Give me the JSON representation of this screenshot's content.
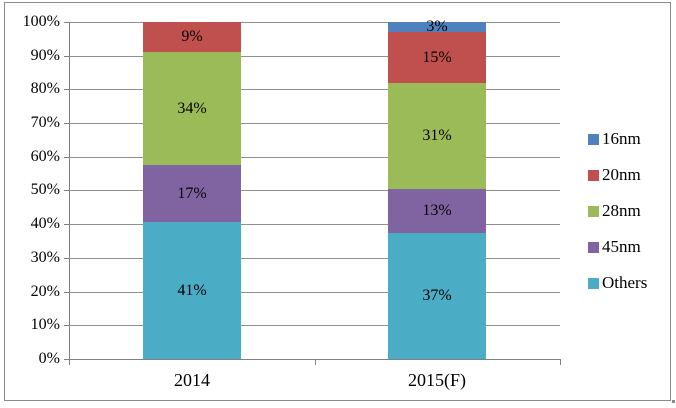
{
  "chart_data": {
    "type": "bar",
    "subtype": "stacked-100",
    "title": "",
    "xlabel": "",
    "ylabel": "",
    "categories": [
      "2014",
      "2015(F)"
    ],
    "series": [
      {
        "name": "16nm",
        "color": "#4F81BD",
        "values": [
          0,
          3
        ],
        "labels": [
          "",
          "3%"
        ]
      },
      {
        "name": "20nm",
        "color": "#C0504D",
        "values": [
          9,
          15
        ],
        "labels": [
          "9%",
          "15%"
        ]
      },
      {
        "name": "28nm",
        "color": "#9BBB59",
        "values": [
          34,
          31
        ],
        "labels": [
          "34%",
          "31%"
        ]
      },
      {
        "name": "45nm",
        "color": "#8064A2",
        "values": [
          17,
          13
        ],
        "labels": [
          "17%",
          "13%"
        ]
      },
      {
        "name": "Others",
        "color": "#4BACC6",
        "values": [
          41,
          37
        ],
        "labels": [
          "41%",
          "37%"
        ]
      }
    ],
    "y_ticks": [
      "0%",
      "10%",
      "20%",
      "30%",
      "40%",
      "50%",
      "60%",
      "70%",
      "80%",
      "90%",
      "100%"
    ],
    "ylim": [
      0,
      100
    ],
    "grid": true,
    "legend_position": "right",
    "axis_color": "#808080",
    "gridline_color": "#909090",
    "label_color": "#000000"
  }
}
